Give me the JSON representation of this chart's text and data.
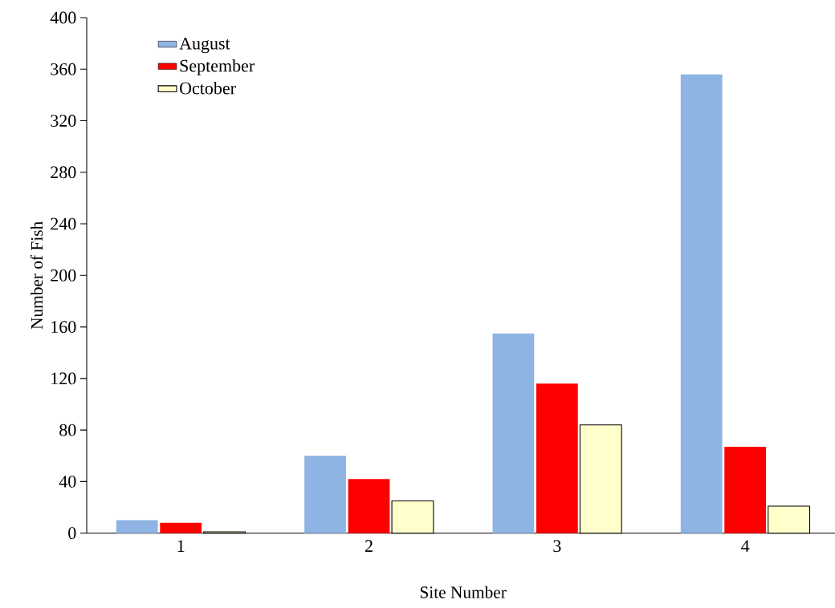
{
  "chart_data": {
    "type": "bar",
    "xlabel": "Site Number",
    "ylabel": "Number of Fish",
    "categories": [
      "1",
      "2",
      "3",
      "4"
    ],
    "series": [
      {
        "name": "August",
        "color": "#8eb4e3",
        "values": [
          10,
          60,
          155,
          356
        ]
      },
      {
        "name": "September",
        "color": "#ff0000",
        "values": [
          8,
          42,
          116,
          67
        ]
      },
      {
        "name": "October",
        "color": "#ffffcc",
        "values": [
          1,
          25,
          84,
          21
        ]
      }
    ],
    "ylim": [
      0,
      400
    ],
    "yticks": [
      0,
      40,
      80,
      120,
      160,
      200,
      240,
      280,
      320,
      360,
      400
    ],
    "legend": "top left"
  }
}
